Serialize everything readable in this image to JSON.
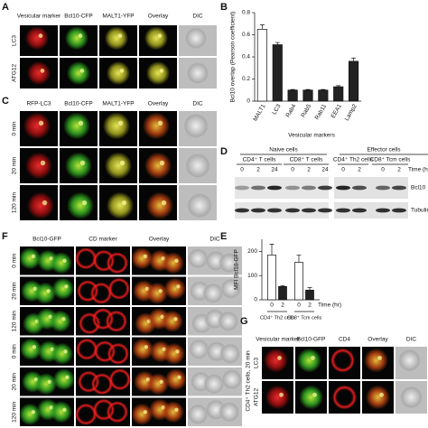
{
  "chart_data": [
    {
      "type": "bar",
      "panel": "B",
      "ylabel": "Bcl10 overlap (Pearson coefficient)",
      "xlabel": "Vesicular markers",
      "categories": [
        "MALT1",
        "LC3",
        "Rab4",
        "Rab5",
        "Rab11",
        "EEA1",
        "Lamp2"
      ],
      "values": [
        0.65,
        0.51,
        0.1,
        0.1,
        0.1,
        0.13,
        0.36
      ],
      "errors": [
        0.04,
        0.02,
        0.005,
        0.005,
        0.005,
        0.01,
        0.03
      ],
      "colors": [
        "#ffffff",
        "#222222",
        "#222222",
        "#222222",
        "#222222",
        "#222222",
        "#222222"
      ],
      "ylim": [
        0,
        0.8
      ],
      "yticks": [
        0,
        0.2,
        0.4,
        0.6,
        0.8
      ]
    },
    {
      "type": "grouped-bar",
      "panel": "E",
      "ylabel": "MFI Bcl10-GFP",
      "xlabel": "Time (hr)",
      "groups": [
        {
          "name": "CD4⁺ Th2 cells",
          "categories": [
            "0",
            "2"
          ],
          "values": [
            185,
            55
          ],
          "errors": [
            45,
            4
          ]
        },
        {
          "name": "CD8⁺ Tcm cells",
          "categories": [
            "0",
            "2"
          ],
          "values": [
            155,
            40
          ],
          "errors": [
            30,
            10
          ]
        }
      ],
      "colors": [
        "#ffffff",
        "#222222"
      ],
      "ylim": [
        0,
        250
      ],
      "yticks": [
        0,
        100,
        200
      ]
    }
  ],
  "panels": {
    "A": {
      "label": "A",
      "columns": [
        "Vesicular marker",
        "Bcl10-CFP",
        "MALT1-YFP",
        "Overlay",
        "DIC"
      ],
      "rows": [
        "LC3",
        "ATG12"
      ]
    },
    "C": {
      "label": "C",
      "columns": [
        "RFP-LC3",
        "Bcl10-CFP",
        "MALT1-YFP",
        "Overlay",
        "DIC"
      ],
      "rows": [
        "0 min",
        "20 min",
        "120 min"
      ]
    },
    "D": {
      "label": "D",
      "groups": [
        "Naive cells",
        "Effector cells"
      ],
      "cell_types": [
        "CD4⁺ T cells",
        "CD8⁺ T cells",
        "CD4⁺ Th2 cells",
        "CD8⁺ Tcm cells"
      ],
      "lanes": [
        "0",
        "2",
        "24",
        "0",
        "2",
        "24",
        "0",
        "2",
        "0",
        "2"
      ],
      "time_label": "Time (hr)",
      "blots": [
        "Bcl10",
        "Tubulin"
      ]
    },
    "E": {
      "label": "E"
    },
    "F": {
      "label": "F",
      "columns": [
        "Bcl10-GFP",
        "CD marker",
        "Overlay",
        "DIC"
      ],
      "rows": [
        "0 min",
        "20 min",
        "120 min",
        "0 min",
        "20 min",
        "120 min"
      ]
    },
    "G": {
      "label": "G",
      "columns": [
        "Vesicular marker",
        "Bcl10-GFP",
        "CD4",
        "Overlay",
        "DIC"
      ],
      "rows": [
        "LC3",
        "ATG12"
      ],
      "side": "CD4⁺ Th2 cells, 20 min"
    }
  }
}
